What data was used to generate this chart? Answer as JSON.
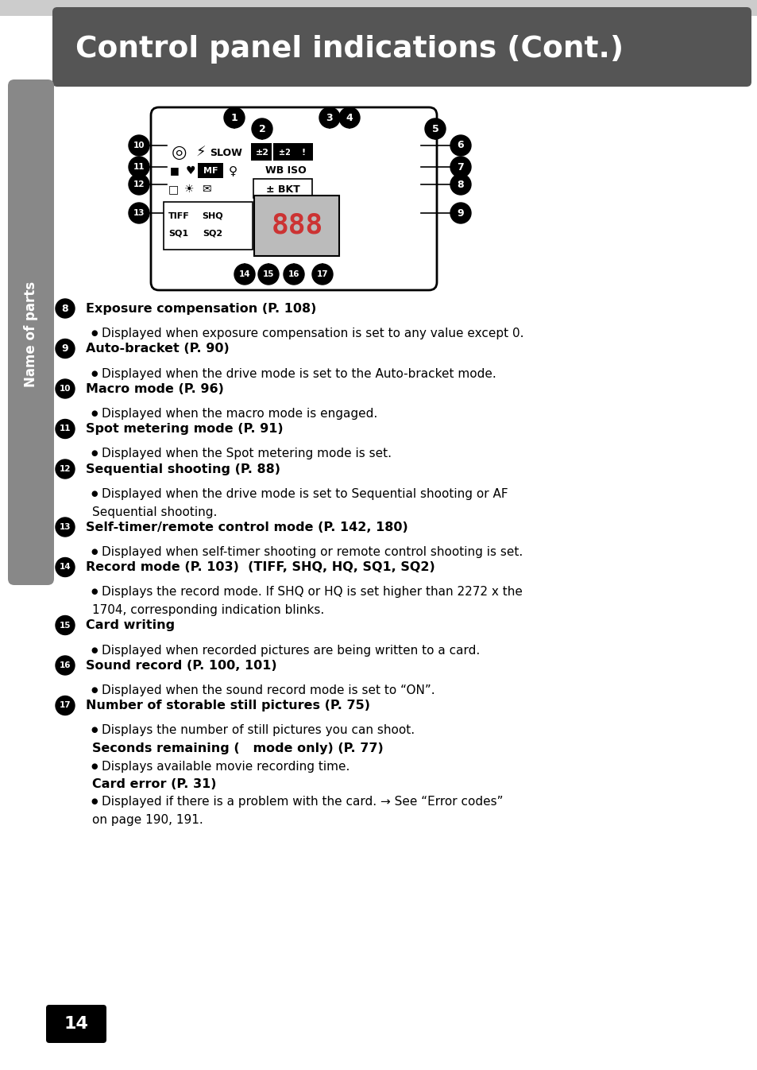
{
  "title": "Control panel indications (Cont.)",
  "title_bg": "#555555",
  "title_color": "#ffffff",
  "page_bg": "#ffffff",
  "sidebar_color": "#888888",
  "sidebar_text": "Name of parts",
  "page_number": "14",
  "items": [
    {
      "num": "8",
      "heading": "Exposure compensation (P. 108)",
      "bullets": [
        {
          "type": "bullet",
          "text": "Displayed when exposure compensation is set to any value except 0."
        }
      ]
    },
    {
      "num": "9",
      "heading": "Auto-bracket (P. 90)",
      "bullets": [
        {
          "type": "bullet",
          "text": "Displayed when the drive mode is set to the Auto-bracket mode."
        }
      ]
    },
    {
      "num": "10",
      "heading": "Macro mode (P. 96)",
      "bullets": [
        {
          "type": "bullet",
          "text": "Displayed when the macro mode is engaged."
        }
      ]
    },
    {
      "num": "11",
      "heading": "Spot metering mode (P. 91)",
      "bullets": [
        {
          "type": "bullet",
          "text": "Displayed when the Spot metering mode is set."
        }
      ]
    },
    {
      "num": "12",
      "heading": "Sequential shooting (P. 88)",
      "bullets": [
        {
          "type": "bullet",
          "text": "Displayed when the drive mode is set to Sequential shooting or AF Sequential shooting.",
          "wrap": true
        }
      ]
    },
    {
      "num": "13",
      "heading": "Self-timer/remote control mode (P. 142, 180)",
      "bullets": [
        {
          "type": "bullet",
          "text": "Displayed when self-timer shooting or remote control shooting is set."
        }
      ]
    },
    {
      "num": "14",
      "heading": "Record mode (P. 103)  (TIFF, SHQ, HQ, SQ1, SQ2)",
      "bullets": [
        {
          "type": "bullet",
          "text": "Displays the record mode. If SHQ or HQ is set higher than 2272 x 1704, the corresponding indication blinks.",
          "wrap": true
        }
      ]
    },
    {
      "num": "15",
      "heading": "Card writing",
      "bullets": [
        {
          "type": "bullet",
          "text": "Displayed when recorded pictures are being written to a card."
        }
      ]
    },
    {
      "num": "16",
      "heading": "Sound record (P. 100, 101)",
      "bullets": [
        {
          "type": "bullet",
          "text": "Displayed when the sound record mode is set to “ON”."
        }
      ]
    },
    {
      "num": "17",
      "heading": "Number of storable still pictures (P. 75)",
      "bullets": [
        {
          "type": "bullet",
          "text": "Displays the number of still pictures you can shoot."
        },
        {
          "type": "bold",
          "text": "Seconds remaining (   mode only) (P. 77)"
        },
        {
          "type": "bullet",
          "text": "Displays available movie recording time."
        },
        {
          "type": "bold",
          "text": "Card error (P. 31)"
        },
        {
          "type": "bullet",
          "text": "Displayed if there is a problem with the card. → See “Error codes” on page 190, 191.",
          "wrap": true
        }
      ]
    }
  ]
}
